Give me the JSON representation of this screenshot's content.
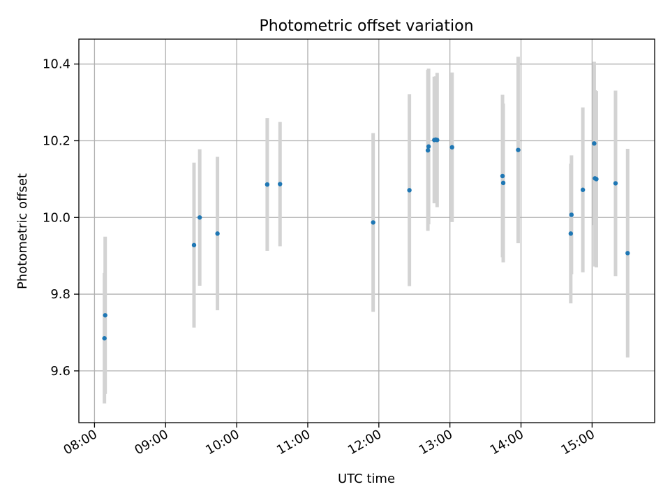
{
  "chart_data": {
    "type": "scatter",
    "title": "Photometric offset variation",
    "xlabel": "UTC time",
    "ylabel": "Photometric offset",
    "x_unit": "hours UTC",
    "xlim": [
      7.78,
      15.88
    ],
    "ylim": [
      9.465,
      10.465
    ],
    "x_ticks": [
      {
        "value": 8,
        "label": "08:00"
      },
      {
        "value": 9,
        "label": "09:00"
      },
      {
        "value": 10,
        "label": "10:00"
      },
      {
        "value": 11,
        "label": "11:00"
      },
      {
        "value": 12,
        "label": "12:00"
      },
      {
        "value": 13,
        "label": "13:00"
      },
      {
        "value": 14,
        "label": "14:00"
      },
      {
        "value": 15,
        "label": "15:00"
      }
    ],
    "y_ticks": [
      {
        "value": 9.6,
        "label": "9.6"
      },
      {
        "value": 9.8,
        "label": "9.8"
      },
      {
        "value": 10.0,
        "label": "10.0"
      },
      {
        "value": 10.2,
        "label": "10.2"
      },
      {
        "value": 10.4,
        "label": "10.4"
      }
    ],
    "grid": true,
    "marker_color": "#1f77b4",
    "errorbar_color": "#d3d3d3",
    "points": [
      {
        "x": 8.14,
        "y": 9.685,
        "err": 0.17
      },
      {
        "x": 8.15,
        "y": 9.745,
        "err": 0.205
      },
      {
        "x": 9.4,
        "y": 9.928,
        "err": 0.215
      },
      {
        "x": 9.48,
        "y": 10.0,
        "err": 0.178
      },
      {
        "x": 9.73,
        "y": 9.958,
        "err": 0.2
      },
      {
        "x": 10.43,
        "y": 10.086,
        "err": 0.173
      },
      {
        "x": 10.61,
        "y": 10.087,
        "err": 0.162
      },
      {
        "x": 11.92,
        "y": 9.987,
        "err": 0.233
      },
      {
        "x": 12.43,
        "y": 10.071,
        "err": 0.25
      },
      {
        "x": 12.69,
        "y": 10.175,
        "err": 0.21
      },
      {
        "x": 12.7,
        "y": 10.185,
        "err": 0.203
      },
      {
        "x": 12.78,
        "y": 10.202,
        "err": 0.165
      },
      {
        "x": 12.8,
        "y": 10.203,
        "err": 0.165
      },
      {
        "x": 12.82,
        "y": 10.202,
        "err": 0.175
      },
      {
        "x": 13.03,
        "y": 10.183,
        "err": 0.195
      },
      {
        "x": 13.74,
        "y": 10.108,
        "err": 0.212
      },
      {
        "x": 13.75,
        "y": 10.09,
        "err": 0.207
      },
      {
        "x": 13.96,
        "y": 10.176,
        "err": 0.243
      },
      {
        "x": 14.7,
        "y": 9.958,
        "err": 0.182
      },
      {
        "x": 14.71,
        "y": 10.007,
        "err": 0.155
      },
      {
        "x": 14.87,
        "y": 10.072,
        "err": 0.215
      },
      {
        "x": 15.03,
        "y": 10.193,
        "err": 0.213
      },
      {
        "x": 15.04,
        "y": 10.102,
        "err": 0.23
      },
      {
        "x": 15.06,
        "y": 10.1,
        "err": 0.23
      },
      {
        "x": 15.33,
        "y": 10.089,
        "err": 0.242
      },
      {
        "x": 15.5,
        "y": 9.907,
        "err": 0.272
      }
    ]
  }
}
